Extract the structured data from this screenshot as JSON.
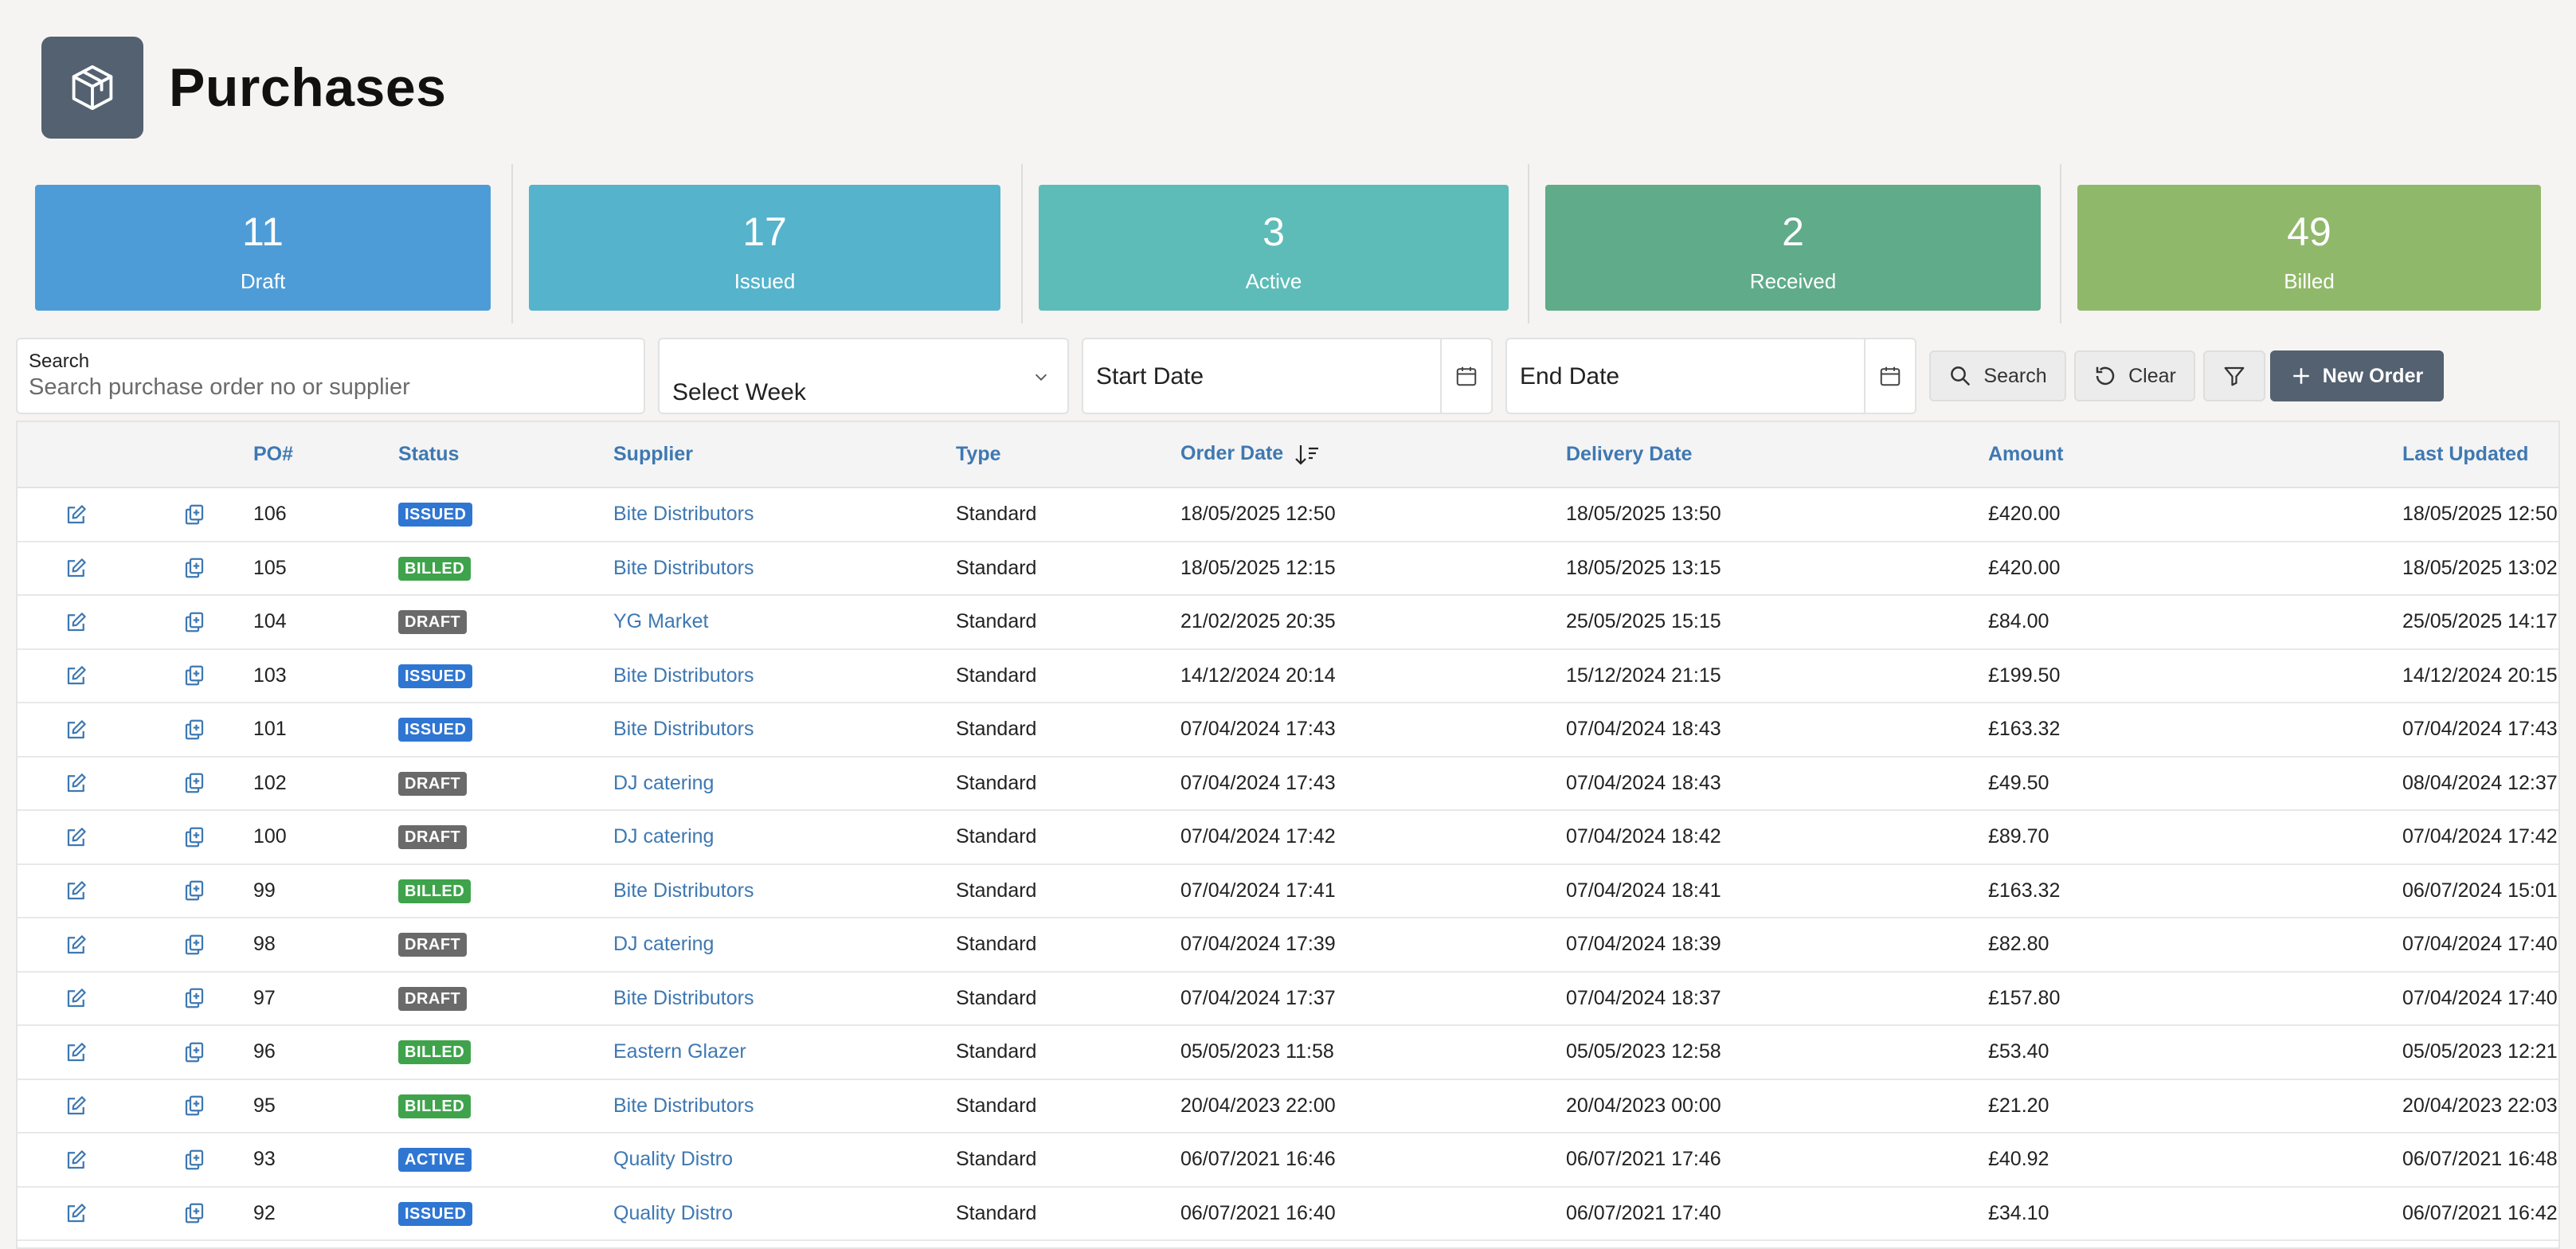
{
  "page": {
    "title": "Purchases",
    "logo_icon": "box-icon"
  },
  "stats": [
    {
      "count": "11",
      "label": "Draft",
      "color": "#4e9cd7"
    },
    {
      "count": "17",
      "label": "Issued",
      "color": "#55b3cc"
    },
    {
      "count": "3",
      "label": "Active",
      "color": "#5dbcb8"
    },
    {
      "count": "2",
      "label": "Received",
      "color": "#5fab8a"
    },
    {
      "count": "49",
      "label": "Billed",
      "color": "#90b86a"
    }
  ],
  "filters": {
    "search_label": "Search",
    "search_placeholder": "Search purchase order no or supplier",
    "week_select": "Select Week",
    "start_date": "Start Date",
    "end_date": "End Date",
    "search_button": "Search",
    "clear_button": "Clear",
    "new_order_button": "New Order"
  },
  "table": {
    "columns": [
      "PO#",
      "Status",
      "Supplier",
      "Type",
      "Order Date",
      "Delivery Date",
      "Amount",
      "Last Updated"
    ],
    "rows": [
      [
        "106",
        "ISSUED",
        "Bite Distributors",
        "Standard",
        "18/05/2025 12:50",
        "18/05/2025 13:50",
        "£420.00",
        "18/05/2025 12:50"
      ],
      [
        "105",
        "BILLED",
        "Bite Distributors",
        "Standard",
        "18/05/2025 12:15",
        "18/05/2025 13:15",
        "£420.00",
        "18/05/2025 13:02"
      ],
      [
        "104",
        "DRAFT",
        "YG Market",
        "Standard",
        "21/02/2025 20:35",
        "25/05/2025 15:15",
        "£84.00",
        "25/05/2025 14:17"
      ],
      [
        "103",
        "ISSUED",
        "Bite Distributors",
        "Standard",
        "14/12/2024 20:14",
        "15/12/2024 21:15",
        "£199.50",
        "14/12/2024 20:15"
      ],
      [
        "101",
        "ISSUED",
        "Bite Distributors",
        "Standard",
        "07/04/2024 17:43",
        "07/04/2024 18:43",
        "£163.32",
        "07/04/2024 17:43"
      ],
      [
        "102",
        "DRAFT",
        "DJ catering",
        "Standard",
        "07/04/2024 17:43",
        "07/04/2024 18:43",
        "£49.50",
        "08/04/2024 12:37"
      ],
      [
        "100",
        "DRAFT",
        "DJ catering",
        "Standard",
        "07/04/2024 17:42",
        "07/04/2024 18:42",
        "£89.70",
        "07/04/2024 17:42"
      ],
      [
        "99",
        "BILLED",
        "Bite Distributors",
        "Standard",
        "07/04/2024 17:41",
        "07/04/2024 18:41",
        "£163.32",
        "06/07/2024 15:01"
      ],
      [
        "98",
        "DRAFT",
        "DJ catering",
        "Standard",
        "07/04/2024 17:39",
        "07/04/2024 18:39",
        "£82.80",
        "07/04/2024 17:40"
      ],
      [
        "97",
        "DRAFT",
        "Bite Distributors",
        "Standard",
        "07/04/2024 17:37",
        "07/04/2024 18:37",
        "£157.80",
        "07/04/2024 17:40"
      ],
      [
        "96",
        "BILLED",
        "Eastern Glazer",
        "Standard",
        "05/05/2023 11:58",
        "05/05/2023 12:58",
        "£53.40",
        "05/05/2023 12:21"
      ],
      [
        "95",
        "BILLED",
        "Bite Distributors",
        "Standard",
        "20/04/2023 22:00",
        "20/04/2023 00:00",
        "£21.20",
        "20/04/2023 22:03"
      ],
      [
        "93",
        "ACTIVE",
        "Quality Distro",
        "Standard",
        "06/07/2021 16:46",
        "06/07/2021 17:46",
        "£40.92",
        "06/07/2021 16:48"
      ],
      [
        "92",
        "ISSUED",
        "Quality Distro",
        "Standard",
        "06/07/2021 16:40",
        "06/07/2021 17:40",
        "£34.10",
        "06/07/2021 16:42"
      ]
    ]
  }
}
